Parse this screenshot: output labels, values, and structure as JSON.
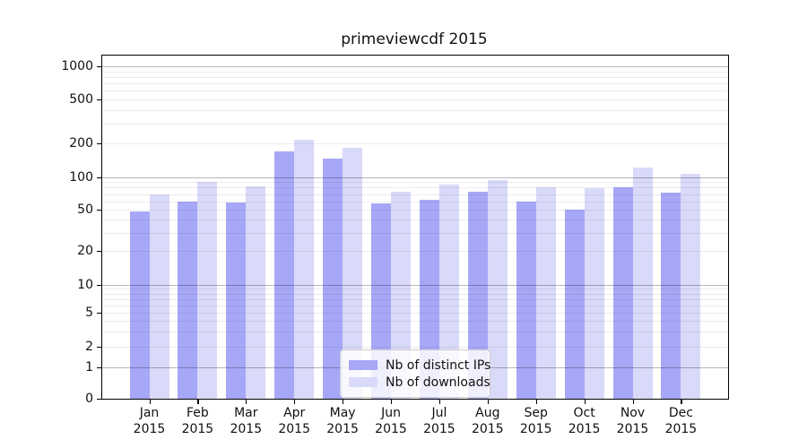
{
  "chart_data": {
    "type": "bar",
    "title": "primeviewcdf 2015",
    "categories": [
      "Jan",
      "Feb",
      "Mar",
      "Apr",
      "May",
      "Jun",
      "Jul",
      "Aug",
      "Sep",
      "Oct",
      "Nov",
      "Dec"
    ],
    "year_label": "2015",
    "series": [
      {
        "name": "Nb of distinct IPs",
        "color": "#a7a7f7",
        "values": [
          48,
          60,
          58,
          170,
          148,
          57,
          62,
          74,
          60,
          50,
          81,
          72
        ]
      },
      {
        "name": "Nb of downloads",
        "color": "#d9d9f9",
        "values": [
          70,
          90,
          83,
          218,
          183,
          73,
          85,
          94,
          81,
          79,
          123,
          107
        ]
      }
    ],
    "yscale": "symlog",
    "y_ticks": [
      0,
      1,
      2,
      5,
      10,
      20,
      50,
      100,
      200,
      500,
      1000
    ],
    "ylim": [
      0,
      1250
    ],
    "grid": "horizontal major and minor",
    "legend_position": "lower center-left"
  }
}
